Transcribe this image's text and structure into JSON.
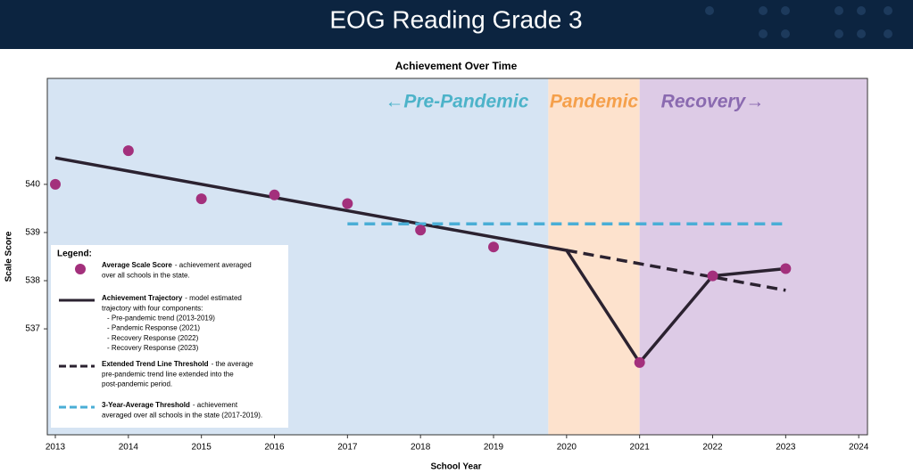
{
  "header": {
    "title": "EOG Reading Grade 3"
  },
  "chart_data": {
    "type": "line",
    "title": "Achievement Over Time",
    "x_label": "School Year",
    "y_label": "Scale Score",
    "xlim": [
      2012.89,
      2024.12
    ],
    "ylim": [
      534.8,
      542.2
    ],
    "xticks": [
      2013,
      2014,
      2015,
      2016,
      2017,
      2018,
      2019,
      2020,
      2021,
      2022,
      2023,
      2024
    ],
    "yticks": [
      537,
      538,
      539,
      540
    ],
    "regions": [
      {
        "label": "←Pre-Pandemic",
        "start": 2012.89,
        "end": 2019.75,
        "color": "#d6e4f3",
        "label_color": "#4db3c9"
      },
      {
        "label": "Pandemic",
        "start": 2019.75,
        "end": 2021,
        "color": "#fde2cd",
        "label_color": "#f5a04b"
      },
      {
        "label": "Recovery→",
        "start": 2021,
        "end": 2024.12,
        "color": "#ddcbe6",
        "label_color": "#8a6ab0"
      }
    ],
    "legend_title": "Legend:",
    "series": [
      {
        "name": "Average Scale Score",
        "style": "points",
        "color": "#a3307c",
        "x": [
          2013,
          2014,
          2015,
          2016,
          2017,
          2018,
          2019,
          2021,
          2022,
          2023
        ],
        "values": [
          540.0,
          540.7,
          539.7,
          539.78,
          539.6,
          539.05,
          538.7,
          536.3,
          538.1,
          538.25
        ],
        "description": [
          "- achievement averaged",
          "over all schools in the state."
        ]
      },
      {
        "name": "Achievement Trajectory",
        "style": "solid",
        "color": "#2b2230",
        "x": [
          2013,
          2020,
          2021,
          2022,
          2023
        ],
        "values": [
          540.55,
          538.63,
          536.3,
          538.1,
          538.25
        ],
        "description": [
          "- model estimated",
          "trajectory with four components:",
          "- Pre-pandemic trend (2013-2019)",
          "- Pandemic Response (2021)",
          "- Recovery Response (2022)",
          "- Recovery Response (2023)"
        ]
      },
      {
        "name": "Extended Trend Line Threshold",
        "style": "dashed",
        "color": "#2b2230",
        "x": [
          2020,
          2023
        ],
        "values": [
          538.63,
          537.8
        ],
        "description": [
          "- the average",
          "pre-pandemic trend line extended into the",
          "post-pandemic period."
        ]
      },
      {
        "name": "3-Year-Average Threshold",
        "style": "dashed",
        "color": "#4aaed6",
        "x": [
          2017,
          2023
        ],
        "values": [
          539.18,
          539.18
        ],
        "description": [
          "- achievement",
          "averaged over all schools in the state (2017-2019)."
        ]
      }
    ]
  }
}
